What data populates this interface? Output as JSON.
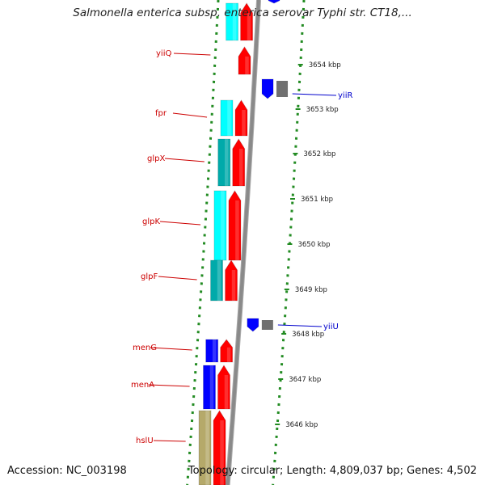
{
  "header": {
    "title": "Salmonella enterica subsp. enterica serovar Typhi str. CT18,..."
  },
  "footer": {
    "accession": "Accession: NC_003198",
    "topology": "Topology: circular; Length: 4,809,037 bp; Genes: 4,502"
  },
  "colors": {
    "backbone": "#8a8a8a",
    "cds": "#ff0000",
    "gene_cyan": "#00ffff",
    "gene_teal": "#00aaaa",
    "gene_blue": "#0000ff",
    "gene_gray": "#707070",
    "gene_olive": "#b5a96a",
    "ring_dots": "#228b22",
    "label_forward": "#cc0000",
    "label_reverse": "#0000cc"
  },
  "ticks": [
    {
      "label": "3654 kbp"
    },
    {
      "label": "3653 kbp"
    },
    {
      "label": "3652 kbp"
    },
    {
      "label": "3651 kbp"
    },
    {
      "label": "3650 kbp"
    },
    {
      "label": "3649 kbp"
    },
    {
      "label": "3648 kbp"
    },
    {
      "label": "3647 kbp"
    },
    {
      "label": "3646 kbp"
    }
  ],
  "genes_forward": [
    {
      "name": "yiiQ"
    },
    {
      "name": "fpr"
    },
    {
      "name": "glpX"
    },
    {
      "name": "glpK"
    },
    {
      "name": "glpF"
    },
    {
      "name": "menG"
    },
    {
      "name": "menA"
    },
    {
      "name": "hslU"
    }
  ],
  "genes_reverse": [
    {
      "name": "yiiR"
    },
    {
      "name": "yiiU"
    }
  ]
}
